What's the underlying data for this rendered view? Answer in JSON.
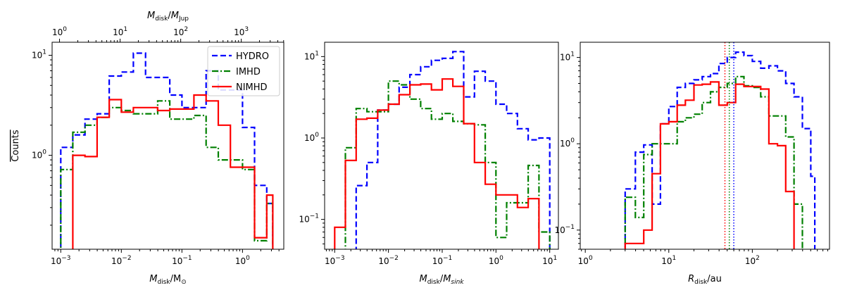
{
  "colors": {
    "HYDRO": "#0000ff",
    "IMHD": "#008000",
    "NIMHD": "#ff0000"
  },
  "y_label": "Counts",
  "legend": [
    "HYDRO",
    "IMHD",
    "NIMHD"
  ],
  "chart_data": [
    {
      "type": "histogram",
      "xscale": "log",
      "yscale": "log",
      "xlabel_base": "M",
      "xlabel_sub": "disk",
      "xlabel_rest": "/M",
      "xlabel_sub2": "⊙",
      "top_axis_label_base": "M",
      "top_axis_sub": "disk",
      "top_axis_rest": "/M",
      "top_axis_sub2": "Jup",
      "top_axis_ticks": [
        {
          "base": "10",
          "exp": "0"
        },
        {
          "base": "10",
          "exp": "1"
        },
        {
          "base": "10",
          "exp": "2"
        },
        {
          "base": "10",
          "exp": "3"
        }
      ],
      "xlim": [
        0.00072,
        4.8
      ],
      "ylim": [
        0.115,
        13.5
      ],
      "xticks": [
        {
          "base": "10",
          "exp": "−3"
        },
        {
          "base": "10",
          "exp": "−2"
        },
        {
          "base": "10",
          "exp": "−1"
        },
        {
          "base": "10",
          "exp": "0"
        }
      ],
      "yticks": [
        {
          "base": "10",
          "exp": "0"
        },
        {
          "base": "10",
          "exp": "1"
        }
      ],
      "legend_position": "top-right",
      "bin_edges": [
        0.001,
        0.00158,
        0.00251,
        0.00398,
        0.00631,
        0.01,
        0.0158,
        0.0251,
        0.0398,
        0.0631,
        0.1,
        0.158,
        0.251,
        0.398,
        0.631,
        1.0,
        1.58,
        2.51,
        3.16
      ],
      "series": [
        {
          "name": "HYDRO",
          "style": "dashed",
          "values": [
            1.2,
            1.6,
            2.3,
            2.6,
            6.2,
            6.8,
            10.5,
            6.0,
            6.0,
            4.0,
            3.0,
            3.0,
            7.0,
            4.5,
            4.5,
            1.9,
            0.5,
            0.33
          ]
        },
        {
          "name": "IMHD",
          "style": "dashdot",
          "values": [
            0.72,
            1.7,
            2.0,
            2.4,
            3.0,
            2.8,
            2.6,
            2.6,
            3.5,
            2.3,
            2.3,
            2.5,
            1.2,
            0.9,
            0.9,
            0.72,
            0.14,
            0.33
          ]
        },
        {
          "name": "NIMHD",
          "style": "solid",
          "values": [
            0.0,
            1.0,
            0.97,
            2.4,
            3.6,
            2.7,
            3.0,
            3.0,
            2.8,
            2.9,
            2.9,
            4.0,
            3.5,
            2.0,
            0.76,
            0.76,
            0.15,
            0.4
          ]
        }
      ]
    },
    {
      "type": "histogram",
      "xscale": "log",
      "yscale": "log",
      "xlabel_base": "M",
      "xlabel_sub": "disk",
      "xlabel_rest": "/M",
      "xlabel_sub2": "sink",
      "xlim": [
        0.00065,
        14.5
      ],
      "ylim": [
        0.043,
        15.0
      ],
      "xticks": [
        {
          "base": "10",
          "exp": "−3"
        },
        {
          "base": "10",
          "exp": "−2"
        },
        {
          "base": "10",
          "exp": "−1"
        },
        {
          "base": "10",
          "exp": "0"
        },
        {
          "base": "10",
          "exp": "1"
        }
      ],
      "yticks": [
        {
          "base": "10",
          "exp": "−1"
        },
        {
          "base": "10",
          "exp": "0"
        },
        {
          "base": "10",
          "exp": "1"
        }
      ],
      "bin_edges": [
        0.001,
        0.00158,
        0.00251,
        0.00398,
        0.00631,
        0.01,
        0.0158,
        0.0251,
        0.0398,
        0.0631,
        0.1,
        0.158,
        0.251,
        0.398,
        0.631,
        1.0,
        1.58,
        2.51,
        3.98,
        6.31,
        10.0
      ],
      "series": [
        {
          "name": "HYDRO",
          "style": "dashed",
          "values": [
            0.0,
            0.0,
            0.26,
            0.5,
            2.2,
            2.6,
            4.2,
            6.0,
            7.5,
            9.0,
            9.5,
            11.5,
            3.2,
            6.6,
            5.0,
            2.6,
            2.0,
            1.3,
            0.95,
            1.0
          ]
        },
        {
          "name": "IMHD",
          "style": "dashdot",
          "values": [
            0.0,
            0.76,
            2.3,
            2.1,
            2.1,
            5.0,
            4.5,
            3.0,
            2.3,
            1.7,
            2.0,
            1.6,
            1.5,
            1.45,
            0.5,
            0.06,
            0.16,
            0.16,
            0.46,
            0.07
          ]
        },
        {
          "name": "NIMHD",
          "style": "solid",
          "values": [
            0.08,
            0.53,
            1.7,
            1.75,
            2.2,
            2.6,
            3.4,
            4.5,
            4.6,
            3.9,
            5.3,
            4.3,
            1.5,
            0.5,
            0.27,
            0.2,
            0.2,
            0.14,
            0.18,
            0.0
          ]
        }
      ]
    },
    {
      "type": "histogram",
      "xscale": "log",
      "yscale": "log",
      "xlabel_base": "R",
      "xlabel_sub": "disk",
      "xlabel_rest": "/au",
      "xlabel_sub2": "",
      "xlim": [
        0.87,
        840
      ],
      "ylim": [
        0.06,
        15.0
      ],
      "xticks": [
        {
          "base": "10",
          "exp": "0"
        },
        {
          "base": "10",
          "exp": "1"
        },
        {
          "base": "10",
          "exp": "2"
        }
      ],
      "yticks": [
        {
          "base": "10",
          "exp": "−1"
        },
        {
          "base": "10",
          "exp": "0"
        },
        {
          "base": "10",
          "exp": "1"
        }
      ],
      "bin_edges": [
        3.0,
        3.98,
        5.01,
        6.31,
        7.94,
        10.0,
        12.6,
        15.8,
        20.0,
        25.1,
        31.6,
        39.8,
        50.1,
        63.1,
        79.4,
        100,
        126,
        158,
        200,
        251,
        316,
        398,
        501,
        560
      ],
      "series": [
        {
          "name": "HYDRO",
          "style": "dashed",
          "values": [
            0.3,
            0.8,
            0.97,
            0.2,
            1.7,
            2.7,
            4.5,
            5.0,
            5.5,
            6.0,
            6.5,
            8.5,
            10.0,
            11.5,
            10.5,
            9.0,
            7.5,
            8.0,
            7.0,
            5.0,
            3.5,
            1.5,
            0.42
          ]
        },
        {
          "name": "IMHD",
          "style": "dashdot",
          "values": [
            0.24,
            0.14,
            0.75,
            1.0,
            1.0,
            1.0,
            1.8,
            2.0,
            2.2,
            3.0,
            4.0,
            4.5,
            5.0,
            6.0,
            4.7,
            4.5,
            3.5,
            2.1,
            2.1,
            1.2,
            0.2,
            0.0,
            0.0
          ]
        },
        {
          "name": "NIMHD",
          "style": "solid",
          "values": [
            0.07,
            0.07,
            0.1,
            0.45,
            1.7,
            1.8,
            2.8,
            3.2,
            4.8,
            4.9,
            5.2,
            2.8,
            3.0,
            4.9,
            4.6,
            4.6,
            4.3,
            1.0,
            0.95,
            0.28,
            0.0,
            0.0,
            0.0
          ]
        }
      ],
      "vlines": [
        {
          "series": "NIMHD",
          "x": 47,
          "style": "dotted"
        },
        {
          "series": "IMHD",
          "x": 53,
          "style": "dotted"
        },
        {
          "series": "HYDRO",
          "x": 60,
          "style": "dotted"
        }
      ]
    }
  ]
}
